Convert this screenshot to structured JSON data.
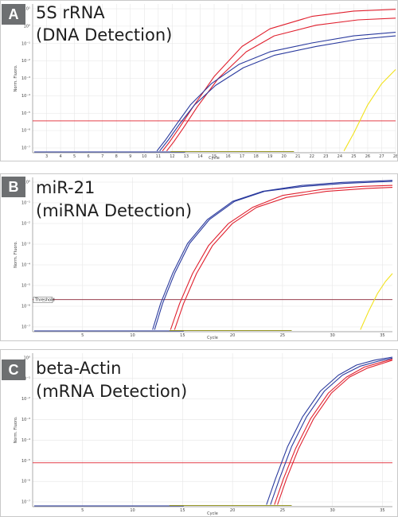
{
  "chart_data": [
    {
      "type": "line",
      "panel_label": "A",
      "title_lines": [
        "5S rRNA",
        "(DNA Detection)"
      ],
      "xlabel": "Cycle",
      "ylabel": "Norm. Fluoro.",
      "xlim": [
        2,
        28
      ],
      "x_ticks": [
        "3",
        "4",
        "5",
        "6",
        "7",
        "8",
        "9",
        "10",
        "11",
        "12",
        "13",
        "14",
        "15",
        "16",
        "17",
        "18",
        "19",
        "20",
        "21",
        "22",
        "23",
        "24",
        "25",
        "26",
        "27",
        "28"
      ],
      "y_ticks": [
        "10¹",
        "10⁰",
        "10⁻¹",
        "10⁻²",
        "10⁻³",
        "10⁻⁴",
        "10⁻⁵",
        "10⁻⁶",
        "10⁻⁷"
      ],
      "ylim": [
        -7.6,
        0.8
      ],
      "log_y": true,
      "grid": true,
      "threshold": -5.8,
      "colors": {
        "red": "#e0202e",
        "blue": "#2a3a9e",
        "yellow": "#f2e21c",
        "threshold": "#e0202e"
      },
      "series": [
        {
          "color": "red",
          "x": [
            11.3,
            11.8,
            12.5,
            13.5,
            15,
            17,
            19,
            22,
            25,
            28
          ],
          "y": [
            -7.5,
            -7.0,
            -6.2,
            -5.0,
            -3.3,
            -1.6,
            -0.6,
            0.1,
            0.4,
            0.5
          ]
        },
        {
          "color": "red",
          "x": [
            11.6,
            12.1,
            12.8,
            13.8,
            15.3,
            17.3,
            19.3,
            22.3,
            25.3,
            28
          ],
          "y": [
            -7.5,
            -7.0,
            -6.2,
            -5.0,
            -3.4,
            -1.9,
            -1.0,
            -0.4,
            -0.1,
            0.0
          ]
        },
        {
          "color": "blue",
          "x": [
            10.9,
            11.5,
            12.3,
            13.3,
            14.8,
            16.8,
            19,
            22,
            25,
            28
          ],
          "y": [
            -7.5,
            -6.9,
            -6.0,
            -4.9,
            -3.7,
            -2.6,
            -1.9,
            -1.4,
            -1.0,
            -0.8
          ]
        },
        {
          "color": "blue",
          "x": [
            11.1,
            11.7,
            12.5,
            13.6,
            15.1,
            17.1,
            19.3,
            22.3,
            25.3,
            28
          ],
          "y": [
            -7.5,
            -6.9,
            -6.0,
            -4.9,
            -3.8,
            -2.8,
            -2.1,
            -1.6,
            -1.2,
            -1.0
          ]
        },
        {
          "color": "yellow",
          "x": [
            24.3,
            25,
            26,
            27,
            28
          ],
          "y": [
            -7.5,
            -6.5,
            -4.9,
            -3.7,
            -2.9
          ]
        }
      ]
    },
    {
      "type": "line",
      "panel_label": "B",
      "title_lines": [
        "miR-21",
        "(miRNA Detection)"
      ],
      "xlabel": "Cycle",
      "ylabel": "Norm. Fluoro.",
      "xlim": [
        0,
        36
      ],
      "x_ticks": [
        "5",
        "10",
        "15",
        "20",
        "25",
        "30",
        "35"
      ],
      "y_ticks": [
        "10⁰",
        "10⁻¹",
        "10⁻²",
        "10⁻³",
        "10⁻⁴",
        "10⁻⁵",
        "10⁻⁶",
        "10⁻⁷"
      ],
      "ylim": [
        -7.4,
        0.3
      ],
      "log_y": true,
      "grid": true,
      "threshold": -5.8,
      "threshold_label": "Threshold",
      "colors": {
        "red": "#e0202e",
        "blue": "#2a3a9e",
        "yellow": "#f2e21c",
        "threshold": "#8a2335"
      },
      "series": [
        {
          "color": "blue",
          "x": [
            12,
            12.8,
            14,
            15.5,
            17.5,
            20,
            23,
            27,
            31,
            36
          ],
          "y": [
            -7.3,
            -6.0,
            -4.5,
            -3.0,
            -1.8,
            -0.9,
            -0.4,
            -0.1,
            0.05,
            0.15
          ]
        },
        {
          "color": "blue",
          "x": [
            12.2,
            13,
            14.2,
            15.7,
            17.7,
            20.2,
            23.2,
            27.2,
            31.2,
            36
          ],
          "y": [
            -7.3,
            -6.0,
            -4.5,
            -3.0,
            -1.8,
            -0.9,
            -0.4,
            -0.15,
            0.0,
            0.1
          ]
        },
        {
          "color": "red",
          "x": [
            13.8,
            14.7,
            16,
            17.6,
            19.6,
            22,
            25,
            29,
            33,
            36
          ],
          "y": [
            -7.3,
            -6.0,
            -4.5,
            -3.1,
            -2.0,
            -1.2,
            -0.6,
            -0.3,
            -0.15,
            -0.1
          ]
        },
        {
          "color": "red",
          "x": [
            14.2,
            15.1,
            16.4,
            18,
            20,
            22.4,
            25.4,
            29.4,
            33.4,
            36
          ],
          "y": [
            -7.3,
            -6.0,
            -4.5,
            -3.1,
            -2.0,
            -1.2,
            -0.7,
            -0.4,
            -0.25,
            -0.2
          ]
        },
        {
          "color": "yellow",
          "x": [
            32.8,
            33.6,
            34.5,
            35.3,
            36
          ],
          "y": [
            -7.3,
            -6.4,
            -5.5,
            -4.9,
            -4.5
          ]
        }
      ]
    },
    {
      "type": "line",
      "panel_label": "C",
      "title_lines": [
        "beta-Actin",
        "(mRNA Detection)"
      ],
      "xlabel": "Cycle",
      "ylabel": "Norm. Fluoro.",
      "xlim": [
        0,
        36
      ],
      "x_ticks": [
        "5",
        "10",
        "15",
        "20",
        "25",
        "30",
        "35"
      ],
      "y_ticks": [
        "10⁰",
        "10⁻¹",
        "10⁻²",
        "10⁻³",
        "10⁻⁴",
        "10⁻⁵",
        "10⁻⁶",
        "10⁻⁷"
      ],
      "ylim": [
        -7.4,
        0.3
      ],
      "log_y": true,
      "grid": true,
      "threshold": -5.2,
      "colors": {
        "red": "#e0202e",
        "blue": "#2a3a9e",
        "yellow": "#f2e21c",
        "threshold": "#e0202e"
      },
      "series": [
        {
          "color": "blue",
          "x": [
            23.4,
            24.3,
            25.5,
            27,
            28.8,
            30.6,
            32.4,
            34.2,
            36
          ],
          "y": [
            -7.3,
            -6.0,
            -4.4,
            -2.9,
            -1.6,
            -0.8,
            -0.3,
            -0.05,
            0.1
          ]
        },
        {
          "color": "blue",
          "x": [
            23.8,
            24.7,
            25.9,
            27.4,
            29.2,
            31,
            32.8,
            34.6,
            36
          ],
          "y": [
            -7.3,
            -6.0,
            -4.4,
            -2.9,
            -1.6,
            -0.8,
            -0.35,
            -0.1,
            0.05
          ]
        },
        {
          "color": "red",
          "x": [
            24.2,
            25.1,
            26.3,
            27.8,
            29.6,
            31.4,
            33.2,
            34.9,
            36
          ],
          "y": [
            -7.3,
            -6.0,
            -4.5,
            -3.0,
            -1.7,
            -0.9,
            -0.4,
            -0.15,
            0.0
          ]
        },
        {
          "color": "red",
          "x": [
            24.5,
            25.4,
            26.6,
            28.1,
            29.9,
            31.7,
            33.5,
            35.1,
            36
          ],
          "y": [
            -7.3,
            -6.0,
            -4.5,
            -3.0,
            -1.7,
            -0.9,
            -0.45,
            -0.2,
            -0.05
          ]
        }
      ]
    }
  ]
}
